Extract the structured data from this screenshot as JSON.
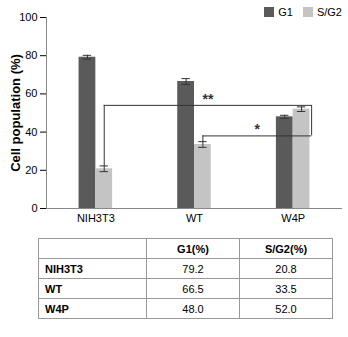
{
  "chart_data": {
    "type": "bar",
    "y_label": "Cell population (%)",
    "categories": [
      "NIH3T3",
      "WT",
      "W4P"
    ],
    "series": [
      {
        "name": "G1",
        "color": "#5a5a5a",
        "values": [
          79.2,
          66.5,
          48.0
        ],
        "errors": [
          1.0,
          1.5,
          0.8
        ]
      },
      {
        "name": "S/G2",
        "color": "#c4c4c4",
        "values": [
          20.8,
          33.5,
          52.0
        ],
        "errors": [
          1.5,
          1.5,
          1.2
        ]
      }
    ],
    "ylim": [
      0,
      100
    ],
    "yticks": [
      0,
      20,
      40,
      60,
      80,
      100
    ],
    "legend": "top-right",
    "annotations": [
      {
        "text": "**",
        "series": "S/G2",
        "from": "NIH3T3",
        "to": "W4P",
        "y": 54
      },
      {
        "text": "*",
        "series": "S/G2",
        "from": "WT",
        "to": "W4P",
        "y": 38
      }
    ]
  },
  "table": {
    "header": [
      "",
      "G1(%)",
      "S/G2(%)"
    ],
    "rows": [
      [
        "NIH3T3",
        "79.2",
        "20.8"
      ],
      [
        "WT",
        "66.5",
        "33.5"
      ],
      [
        "W4P",
        "48.0",
        "52.0"
      ]
    ]
  }
}
